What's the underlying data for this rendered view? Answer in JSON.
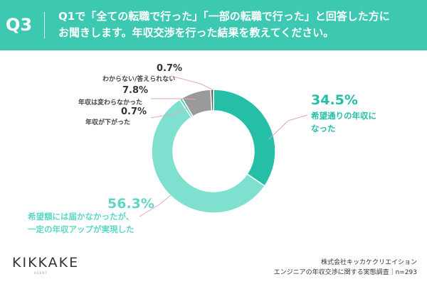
{
  "header": {
    "badge": "Q3",
    "question_line1": "Q1で「全ての転職で行った」「一部の転職で行った」と回答した方に",
    "question_line2": "お聞きします。年収交渉を行った結果を教えてください。",
    "color": "#3dc8b2"
  },
  "chart_data": {
    "type": "pie",
    "donut": true,
    "categories": [
      "希望通りの年収になった",
      "希望額には届かなかったが、一定の年収アップが実現した",
      "年収が下がった",
      "年収は変わらなかった",
      "わからない/答えられない"
    ],
    "values": [
      34.5,
      56.3,
      0.7,
      7.8,
      0.7
    ],
    "colors": [
      "#25bfa6",
      "#7fe0d0",
      "#4fd0bd",
      "#9a9a9a",
      "#5a5a5a"
    ],
    "labels": [
      {
        "value": "34.5%",
        "lines": [
          "希望通りの年収に",
          "なった"
        ]
      },
      {
        "value": "56.3%",
        "lines": [
          "希望額には届かなかったが、",
          "一定の年収アップが実現した"
        ]
      },
      {
        "value": "0.7%",
        "lines": [
          "年収が下がった"
        ]
      },
      {
        "value": "7.8%",
        "lines": [
          "年収は変わらなかった"
        ]
      },
      {
        "value": "0.7%",
        "lines": [
          "わからない/答えられない"
        ]
      }
    ]
  },
  "label_colors": {
    "dark_teal": "#25bfa6",
    "light_teal": "#5fd6c4",
    "leader_pink": "#e3a6c0"
  },
  "brand": {
    "logo": "KIKKAKE",
    "sub": "AGENT"
  },
  "footer": {
    "line1": "株式会社キッカケクリエイション",
    "line2": "エンジニアの年収交渉に関する実態調査｜n=293"
  }
}
